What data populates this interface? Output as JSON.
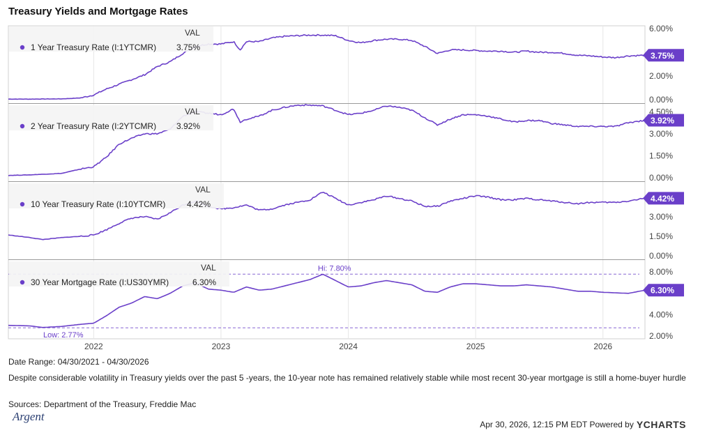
{
  "title": "Treasury Yields and Mortgage Rates",
  "x_ticks": [
    "2022",
    "2023",
    "2024",
    "2025",
    "2026"
  ],
  "value_header": "VAL",
  "colors": {
    "series": "#6a3fc9",
    "label_bg": "#6a3fc9",
    "grid": "#cfcfcf",
    "panel_border": "#d0d0d0"
  },
  "footer": {
    "date_range": "Date Range: 04/30/2021 - 04/30/2026",
    "description": "Despite considerable volatility in Treasury yields over the past 5 -years, the 10-year note has remained relatively stable while most recent 30-year mortgage is still a home-buyer hurdle",
    "sources": "Sources: Department of the Treasury, Freddie Mac",
    "timestamp": "Apr 30, 2026, 12:15 PM EDT Powered by",
    "brand": "YCHARTS",
    "logo_text": "Argent"
  },
  "chart_data": [
    {
      "type": "line",
      "name": "1 Year Treasury Rate (I:1YTCMR)",
      "last_value_label": "3.75%",
      "ylim": [
        0,
        6
      ],
      "y_ticks": [
        "0.00%",
        "2.00%",
        "4.00%",
        "6.00%"
      ],
      "y_tick_values": [
        0,
        2,
        4,
        6
      ],
      "x": [
        2021.33,
        2021.5,
        2021.75,
        2021.9,
        2022.0,
        2022.1,
        2022.2,
        2022.3,
        2022.4,
        2022.5,
        2022.6,
        2022.7,
        2022.8,
        2022.9,
        2023.0,
        2023.1,
        2023.15,
        2023.2,
        2023.3,
        2023.4,
        2023.5,
        2023.6,
        2023.7,
        2023.8,
        2023.9,
        2024.0,
        2024.1,
        2024.2,
        2024.3,
        2024.4,
        2024.5,
        2024.6,
        2024.7,
        2024.8,
        2024.9,
        2025.0,
        2025.1,
        2025.2,
        2025.3,
        2025.4,
        2025.5,
        2025.6,
        2025.7,
        2025.8,
        2025.9,
        2026.0,
        2026.1,
        2026.2,
        2026.33
      ],
      "y": [
        0.05,
        0.05,
        0.07,
        0.15,
        0.4,
        0.9,
        1.3,
        1.7,
        2.1,
        2.8,
        3.2,
        3.9,
        4.5,
        4.7,
        4.7,
        4.9,
        4.2,
        4.9,
        4.9,
        5.2,
        5.35,
        5.4,
        5.45,
        5.45,
        5.4,
        5.0,
        4.8,
        5.0,
        5.1,
        5.1,
        5.0,
        4.5,
        3.9,
        4.2,
        4.2,
        4.15,
        4.1,
        4.1,
        4.0,
        4.1,
        4.0,
        4.0,
        3.9,
        3.75,
        3.7,
        3.6,
        3.55,
        3.7,
        3.75
      ]
    },
    {
      "type": "line",
      "name": "2 Year Treasury Rate (I:2YTCMR)",
      "last_value_label": "3.92%",
      "ylim": [
        0,
        4.8
      ],
      "y_ticks": [
        "0.00%",
        "1.50%",
        "3.00%",
        "4.50%"
      ],
      "y_tick_values": [
        0,
        1.5,
        3,
        4.5
      ],
      "x": [
        2021.33,
        2021.5,
        2021.75,
        2021.9,
        2022.0,
        2022.1,
        2022.2,
        2022.3,
        2022.4,
        2022.5,
        2022.6,
        2022.7,
        2022.8,
        2022.9,
        2023.0,
        2023.1,
        2023.15,
        2023.2,
        2023.3,
        2023.4,
        2023.5,
        2023.6,
        2023.7,
        2023.8,
        2023.9,
        2024.0,
        2024.1,
        2024.2,
        2024.3,
        2024.4,
        2024.5,
        2024.6,
        2024.7,
        2024.8,
        2024.9,
        2025.0,
        2025.1,
        2025.2,
        2025.3,
        2025.4,
        2025.5,
        2025.6,
        2025.7,
        2025.8,
        2025.9,
        2026.0,
        2026.1,
        2026.2,
        2026.33
      ],
      "y": [
        0.16,
        0.2,
        0.3,
        0.6,
        0.75,
        1.4,
        2.3,
        2.7,
        3.0,
        3.0,
        3.3,
        4.2,
        4.5,
        4.4,
        4.3,
        4.7,
        3.8,
        4.0,
        4.2,
        4.6,
        4.8,
        4.95,
        4.95,
        4.9,
        4.6,
        4.3,
        4.4,
        4.6,
        4.9,
        4.8,
        4.6,
        4.1,
        3.6,
        4.0,
        4.3,
        4.3,
        4.2,
        4.0,
        3.8,
        3.9,
        3.9,
        3.7,
        3.6,
        3.5,
        3.5,
        3.5,
        3.5,
        3.75,
        3.92
      ]
    },
    {
      "type": "line",
      "name": "10 Year Treasury Rate (I:10YTCMR)",
      "last_value_label": "4.42%",
      "ylim": [
        0,
        5.4
      ],
      "y_ticks": [
        "0.00%",
        "1.50%",
        "3.00%",
        "4.50%"
      ],
      "y_tick_values": [
        0,
        1.5,
        3,
        4.5
      ],
      "x": [
        2021.33,
        2021.5,
        2021.6,
        2021.75,
        2021.9,
        2022.0,
        2022.1,
        2022.2,
        2022.3,
        2022.4,
        2022.5,
        2022.6,
        2022.7,
        2022.8,
        2022.9,
        2023.0,
        2023.1,
        2023.2,
        2023.3,
        2023.4,
        2023.5,
        2023.6,
        2023.7,
        2023.8,
        2023.9,
        2024.0,
        2024.1,
        2024.2,
        2024.3,
        2024.4,
        2024.5,
        2024.6,
        2024.7,
        2024.8,
        2024.9,
        2025.0,
        2025.1,
        2025.2,
        2025.3,
        2025.4,
        2025.5,
        2025.6,
        2025.7,
        2025.8,
        2025.9,
        2026.0,
        2026.1,
        2026.2,
        2026.33
      ],
      "y": [
        1.6,
        1.4,
        1.25,
        1.4,
        1.5,
        1.6,
        2.0,
        2.5,
        2.9,
        3.0,
        2.8,
        3.3,
        3.9,
        4.2,
        3.8,
        3.6,
        3.7,
        3.9,
        3.5,
        3.6,
        3.9,
        4.1,
        4.3,
        4.9,
        4.4,
        3.9,
        4.1,
        4.3,
        4.6,
        4.4,
        4.2,
        3.8,
        3.8,
        4.2,
        4.4,
        4.6,
        4.5,
        4.3,
        4.3,
        4.4,
        4.3,
        4.2,
        4.1,
        4.0,
        4.1,
        4.1,
        4.1,
        4.2,
        4.42
      ]
    },
    {
      "type": "line",
      "name": "30 Year Mortgage Rate (I:US30YMR)",
      "last_value_label": "6.30%",
      "ylim": [
        2,
        8.8
      ],
      "y_ticks": [
        "2.00%",
        "4.00%",
        "6.00%",
        "8.00%"
      ],
      "y_tick_values": [
        2,
        4,
        6,
        8
      ],
      "hi": {
        "label": "Hi: 7.80%",
        "value": 7.8
      },
      "low": {
        "label": "Low: 2.77%",
        "value": 2.77
      },
      "x": [
        2021.33,
        2021.5,
        2021.6,
        2021.75,
        2021.9,
        2022.0,
        2022.1,
        2022.2,
        2022.3,
        2022.4,
        2022.5,
        2022.6,
        2022.7,
        2022.8,
        2022.9,
        2023.0,
        2023.1,
        2023.2,
        2023.3,
        2023.4,
        2023.5,
        2023.6,
        2023.7,
        2023.8,
        2023.9,
        2024.0,
        2024.1,
        2024.2,
        2024.3,
        2024.4,
        2024.5,
        2024.6,
        2024.7,
        2024.8,
        2024.9,
        2025.0,
        2025.1,
        2025.2,
        2025.3,
        2025.4,
        2025.5,
        2025.6,
        2025.7,
        2025.8,
        2025.9,
        2026.0,
        2026.1,
        2026.2,
        2026.33
      ],
      "y": [
        3.0,
        2.95,
        2.8,
        2.9,
        3.1,
        3.2,
        3.9,
        4.7,
        5.1,
        5.7,
        5.5,
        6.0,
        6.7,
        7.0,
        6.4,
        6.3,
        6.1,
        6.6,
        6.3,
        6.4,
        6.7,
        7.0,
        7.3,
        7.8,
        7.2,
        6.6,
        6.7,
        7.0,
        7.2,
        7.0,
        6.8,
        6.2,
        6.1,
        6.6,
        6.9,
        6.9,
        6.8,
        6.7,
        6.7,
        6.8,
        6.7,
        6.6,
        6.4,
        6.2,
        6.2,
        6.1,
        6.05,
        6.0,
        6.3
      ]
    }
  ]
}
